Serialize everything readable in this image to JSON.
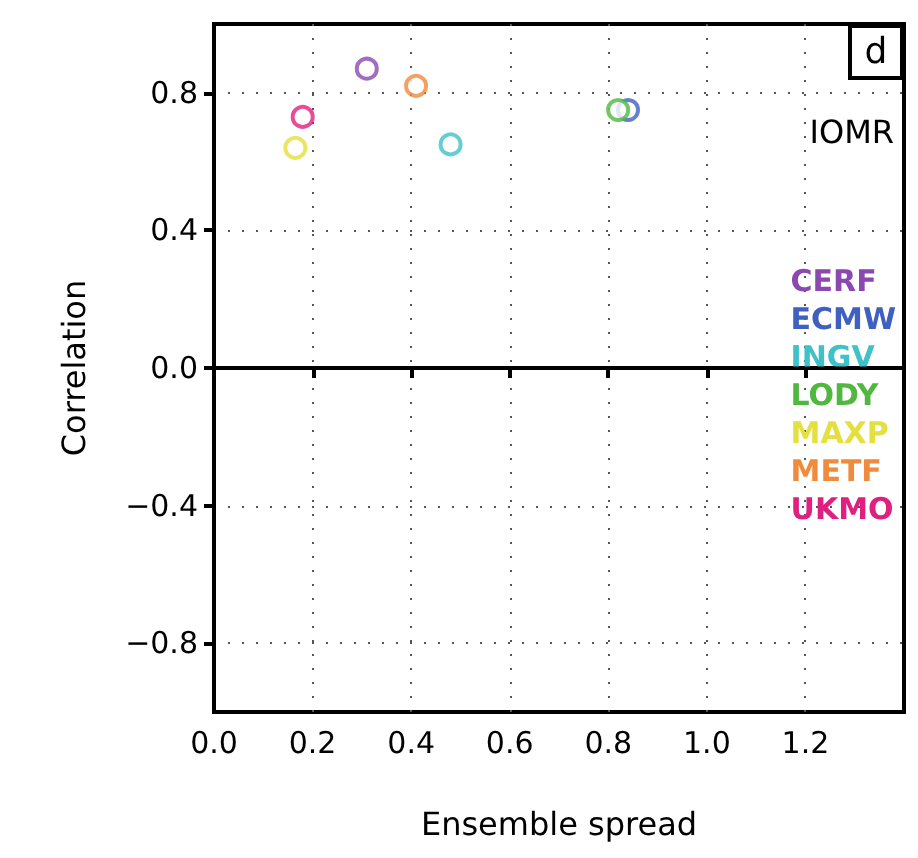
{
  "chart_data": {
    "type": "scatter",
    "title": "d",
    "xlabel": "Ensemble spread",
    "ylabel": "Correlation",
    "annotations": [
      "IOMR"
    ],
    "series": [
      {
        "name": "CERF",
        "color": "#8a48b0",
        "x": [
          0.31
        ],
        "values": [
          0.87
        ]
      },
      {
        "name": "ECMW",
        "color": "#4060c0",
        "x": [
          0.84
        ],
        "values": [
          0.75
        ]
      },
      {
        "name": "INGV",
        "color": "#40c0c8",
        "x": [
          0.48
        ],
        "values": [
          0.65
        ]
      },
      {
        "name": "LODY",
        "color": "#50b840",
        "x": [
          0.82
        ],
        "values": [
          0.75
        ]
      },
      {
        "name": "MAXP",
        "color": "#e4e040",
        "x": [
          0.165
        ],
        "values": [
          0.64
        ]
      },
      {
        "name": "METF",
        "color": "#f08a3c",
        "x": [
          0.41
        ],
        "values": [
          0.82
        ]
      },
      {
        "name": "UKMO",
        "color": "#e02080",
        "x": [
          0.18
        ],
        "values": [
          0.73
        ]
      }
    ],
    "xlim": [
      0,
      1.4
    ],
    "xticks": [
      {
        "value": 0,
        "label": "0.0"
      },
      0.2,
      0.4,
      0.6,
      0.8,
      {
        "value": 1,
        "label": "1.0"
      },
      1.2
    ],
    "ylim": [
      -1,
      1
    ],
    "yticks": [
      {
        "value": -0.8,
        "label": "−0.8"
      },
      {
        "value": -0.4,
        "label": "−0.4"
      },
      {
        "value": 0,
        "label": "0.0"
      },
      0.4,
      0.8
    ],
    "ref_lines": [
      {
        "axis": "y",
        "value": 0,
        "color": "#000000"
      }
    ],
    "grid": true,
    "legend": "right",
    "marker": "circle"
  }
}
